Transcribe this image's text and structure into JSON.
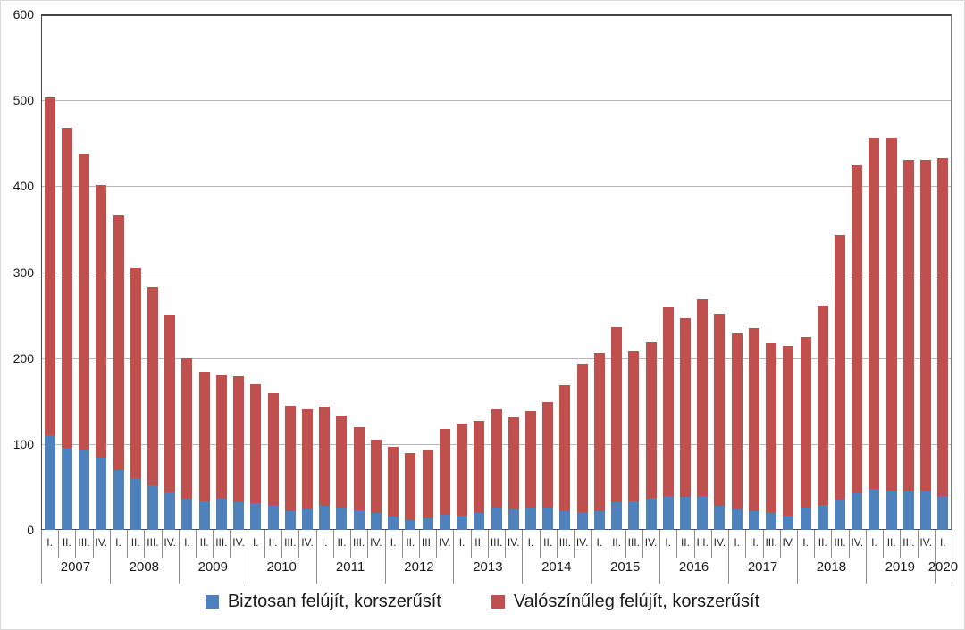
{
  "chart_data": {
    "type": "bar",
    "subtype": "stacked",
    "title": "",
    "xlabel": "",
    "ylabel": "",
    "ylim": [
      0,
      600
    ],
    "y_ticks": [
      0,
      100,
      200,
      300,
      400,
      500,
      600
    ],
    "grid": true,
    "legend_position": "bottom",
    "x_axis": {
      "years": [
        {
          "label": "2007",
          "quarters": [
            "I.",
            "II.",
            "III.",
            "IV."
          ]
        },
        {
          "label": "2008",
          "quarters": [
            "I.",
            "II.",
            "III.",
            "IV."
          ]
        },
        {
          "label": "2009",
          "quarters": [
            "I.",
            "II.",
            "III.",
            "IV."
          ]
        },
        {
          "label": "2010",
          "quarters": [
            "I.",
            "II.",
            "III.",
            "IV."
          ]
        },
        {
          "label": "2011",
          "quarters": [
            "I.",
            "II.",
            "III.",
            "IV."
          ]
        },
        {
          "label": "2012",
          "quarters": [
            "I.",
            "II.",
            "III.",
            "IV."
          ]
        },
        {
          "label": "2013",
          "quarters": [
            "I.",
            "II.",
            "III.",
            "IV."
          ]
        },
        {
          "label": "2014",
          "quarters": [
            "I.",
            "II.",
            "III.",
            "IV."
          ]
        },
        {
          "label": "2015",
          "quarters": [
            "I.",
            "II.",
            "III.",
            "IV."
          ]
        },
        {
          "label": "2016",
          "quarters": [
            "I.",
            "II.",
            "III.",
            "IV."
          ]
        },
        {
          "label": "2017",
          "quarters": [
            "I.",
            "II.",
            "III.",
            "IV."
          ]
        },
        {
          "label": "2018",
          "quarters": [
            "I.",
            "II.",
            "III.",
            "IV."
          ]
        },
        {
          "label": "2019",
          "quarters": [
            "I.",
            "II.",
            "III.",
            "IV."
          ]
        },
        {
          "label": "2020",
          "quarters": [
            "I."
          ]
        }
      ]
    },
    "series": [
      {
        "name": "Biztosan felújít, korszerűsít",
        "color": "#4f81bd",
        "values": [
          110,
          96,
          93,
          84,
          70,
          60,
          52,
          44,
          36,
          33,
          36,
          32,
          31,
          29,
          22,
          24,
          28,
          26,
          23,
          20,
          16,
          11,
          13,
          18,
          17,
          20,
          26,
          24,
          26,
          26,
          22,
          21,
          22,
          32,
          33,
          37,
          39,
          38,
          39,
          28,
          24,
          22,
          20,
          17,
          26,
          29,
          35,
          43,
          48,
          46,
          46,
          46,
          39
        ]
      },
      {
        "name": "Valószínűleg felújít, korszerűsít",
        "color": "#c0504d",
        "values": [
          393,
          372,
          345,
          317,
          296,
          245,
          231,
          207,
          164,
          151,
          144,
          147,
          139,
          130,
          123,
          116,
          115,
          107,
          97,
          85,
          81,
          78,
          80,
          100,
          107,
          107,
          114,
          107,
          112,
          123,
          146,
          172,
          184,
          204,
          175,
          181,
          220,
          208,
          229,
          224,
          205,
          213,
          197,
          197,
          199,
          232,
          308,
          381,
          409,
          411,
          384,
          385,
          394
        ]
      }
    ],
    "stacked_totals": [
      503,
      468,
      438,
      401,
      366,
      305,
      283,
      251,
      200,
      184,
      180,
      179,
      170,
      159,
      145,
      140,
      143,
      133,
      120,
      105,
      97,
      89,
      93,
      118,
      124,
      127,
      140,
      131,
      138,
      149,
      168,
      193,
      206,
      236,
      208,
      218,
      259,
      246,
      268,
      252,
      229,
      235,
      217,
      214,
      225,
      261,
      343,
      424,
      457,
      457,
      430,
      431,
      433
    ]
  },
  "colors": {
    "bar_certain": "#4f81bd",
    "bar_probable": "#c0504d",
    "gridline": "#b7b7b7",
    "axis": "#4a4a4a",
    "tick": "#8c8c8c",
    "frame_border": "#d9d9d9",
    "text": "#1a1a1a"
  }
}
